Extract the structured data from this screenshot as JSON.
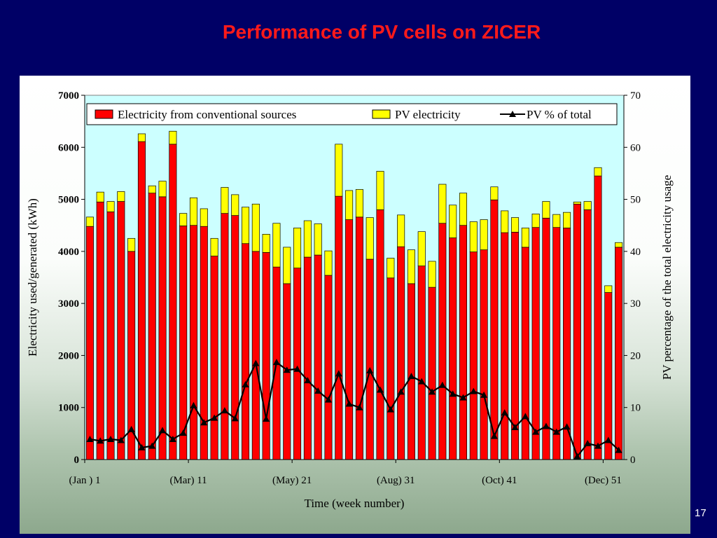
{
  "slide": {
    "title": "Performance of PV cells on ZICER",
    "page_number": "17"
  },
  "colors": {
    "conventional": "#ff0000",
    "pv": "#ffff00",
    "pv_percent_line": "#000000",
    "plot_background": "#ccffff",
    "slide_background": "#000066"
  },
  "chart_data": {
    "type": "bar",
    "stacked": true,
    "xlabel": "Time (week number)",
    "ylabel": "Electricity used/generated (kWh)",
    "y2label": "PV percentage of the total electricity usage",
    "ylim": [
      0,
      7000
    ],
    "y2lim": [
      0,
      70
    ],
    "yticks": [
      "0",
      "1000",
      "2000",
      "3000",
      "4000",
      "5000",
      "6000",
      "7000"
    ],
    "y2ticks": [
      "0",
      "10",
      "20",
      "30",
      "40",
      "50",
      "60",
      "70"
    ],
    "x": [
      1,
      2,
      3,
      4,
      5,
      6,
      7,
      8,
      9,
      10,
      11,
      12,
      13,
      14,
      15,
      16,
      17,
      18,
      19,
      20,
      21,
      22,
      23,
      24,
      25,
      26,
      27,
      28,
      29,
      30,
      31,
      32,
      33,
      34,
      35,
      36,
      37,
      38,
      39,
      40,
      41,
      42,
      43,
      44,
      45,
      46,
      47,
      48,
      49,
      50,
      51,
      52
    ],
    "xtick_labels": [
      {
        "week": 1,
        "label": "(Jan ) 1"
      },
      {
        "week": 11,
        "label": "(Mar) 11"
      },
      {
        "week": 21,
        "label": "(May) 21"
      },
      {
        "week": 31,
        "label": "(Aug) 31"
      },
      {
        "week": 41,
        "label": "(Oct) 41"
      },
      {
        "week": 51,
        "label": "(Dec) 51"
      }
    ],
    "legend": {
      "position": "top",
      "entries": [
        "Electricity from conventional sources",
        "PV electricity",
        "PV % of total"
      ]
    },
    "grid": false,
    "series": [
      {
        "name": "Electricity from conventional sources",
        "type": "bar",
        "axis": "left",
        "values": [
          4480,
          4950,
          4760,
          4960,
          4000,
          6110,
          5120,
          5050,
          6060,
          4490,
          4500,
          4480,
          3910,
          4730,
          4690,
          4150,
          4000,
          3980,
          3700,
          3380,
          3680,
          3890,
          3930,
          3540,
          5060,
          4610,
          4660,
          3850,
          4800,
          3490,
          4090,
          3380,
          3720,
          3310,
          4540,
          4260,
          4500,
          3990,
          4030,
          4990,
          4360,
          4370,
          4080,
          4460,
          4640,
          4460,
          4450,
          4910,
          4800,
          5450,
          3210,
          4080
        ]
      },
      {
        "name": "PV electricity",
        "type": "bar",
        "axis": "left",
        "values": [
          180,
          190,
          200,
          190,
          250,
          150,
          140,
          300,
          250,
          240,
          530,
          340,
          340,
          500,
          400,
          700,
          910,
          350,
          840,
          700,
          770,
          700,
          600,
          470,
          1000,
          560,
          530,
          800,
          740,
          380,
          610,
          650,
          660,
          500,
          750,
          630,
          620,
          580,
          580,
          250,
          420,
          280,
          370,
          260,
          320,
          250,
          300,
          40,
          160,
          160,
          130,
          90
        ]
      },
      {
        "name": "PV % of total",
        "type": "line",
        "axis": "right",
        "values": [
          3.9,
          3.6,
          3.9,
          3.7,
          5.8,
          2.3,
          2.6,
          5.6,
          3.9,
          5.1,
          10.4,
          7.1,
          8.0,
          9.4,
          7.9,
          14.4,
          18.5,
          7.8,
          18.7,
          17.2,
          17.4,
          15.2,
          13.2,
          11.5,
          16.5,
          10.7,
          10.0,
          17.1,
          13.4,
          9.6,
          13.0,
          16.0,
          15.0,
          13.0,
          14.3,
          12.6,
          11.9,
          13.1,
          12.4,
          4.5,
          9.0,
          6.2,
          8.3,
          5.3,
          6.4,
          5.3,
          6.3,
          0.6,
          3.1,
          2.6,
          3.7,
          1.8
        ]
      }
    ]
  }
}
